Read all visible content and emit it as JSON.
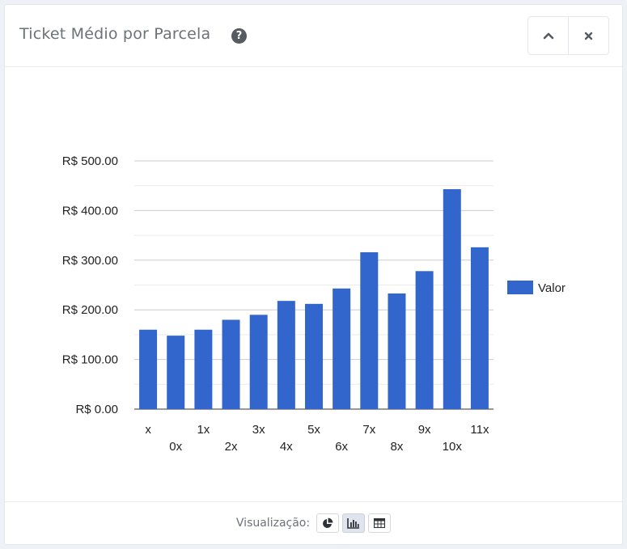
{
  "panel": {
    "title": "Ticket Médio por Parcela",
    "help_glyph": "?",
    "collapse_icon": "chevron-up-icon",
    "close_icon": "close-icon",
    "collapse_glyph": "⌃",
    "close_glyph": "✖"
  },
  "footer": {
    "label": "Visualização:",
    "buttons": [
      {
        "icon": "pie-chart-icon",
        "active": false
      },
      {
        "icon": "bar-chart-icon",
        "active": true
      },
      {
        "icon": "table-icon",
        "active": false
      }
    ]
  },
  "colors": {
    "bar": "#3366cc",
    "grid": "#cccccc",
    "text": "#222222"
  },
  "chart_data": {
    "type": "bar",
    "categories": [
      "x",
      "0x",
      "1x",
      "2x",
      "3x",
      "4x",
      "5x",
      "6x",
      "7x",
      "8x",
      "9x",
      "10x",
      "11x"
    ],
    "series": [
      {
        "name": "Valor",
        "values": [
          160,
          148,
          160,
          180,
          190,
          218,
          212,
          243,
          316,
          233,
          278,
          443,
          326
        ]
      }
    ],
    "yticks": [
      0,
      100,
      200,
      300,
      400,
      500
    ],
    "ytick_labels": [
      "R$ 0.00",
      "R$ 100.00",
      "R$ 200.00",
      "R$ 300.00",
      "R$ 400.00",
      "R$ 500.00"
    ],
    "ylim": [
      0,
      500
    ],
    "legend_position": "right",
    "grid": true
  }
}
